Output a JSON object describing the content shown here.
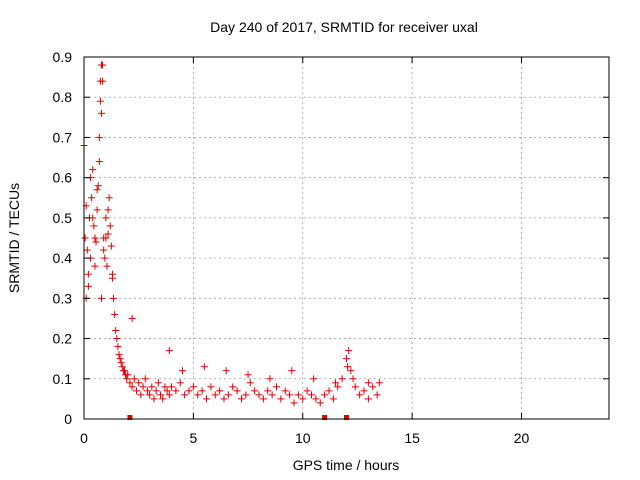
{
  "chart_data": {
    "type": "scatter",
    "title": "Day 240 of 2017, SRMTID for receiver uxal",
    "xlabel": "GPS time / hours",
    "ylabel": "SRMTID / TECUs",
    "xlim": [
      0,
      24
    ],
    "ylim": [
      0,
      0.9
    ],
    "xticks": [
      "0",
      "5",
      "10",
      "15",
      "20"
    ],
    "xtick_values": [
      0,
      5,
      10,
      15,
      20
    ],
    "yticks": [
      "0",
      "0.1",
      "0.2",
      "0.3",
      "0.4",
      "0.5",
      "0.6",
      "0.7",
      "0.8",
      "0.9"
    ],
    "ytick_values": [
      0,
      0.1,
      0.2,
      0.3,
      0.4,
      0.5,
      0.6,
      0.7,
      0.8,
      0.9
    ],
    "grid": true,
    "color": "#e00000",
    "series": [
      {
        "name": "SRMTID",
        "marker": "plus",
        "x": [
          0.0,
          0.05,
          0.1,
          0.15,
          0.2,
          0.25,
          0.3,
          0.35,
          0.4,
          0.45,
          0.5,
          0.55,
          0.6,
          0.65,
          0.7,
          0.75,
          0.8,
          0.85,
          0.9,
          0.95,
          1.0,
          1.05,
          1.1,
          1.15,
          1.2,
          1.25,
          1.3,
          1.35,
          1.4,
          1.45,
          1.5,
          1.55,
          1.6,
          1.65,
          1.7,
          1.75,
          1.8,
          1.85,
          1.9,
          1.95,
          2.0,
          2.1,
          2.2,
          2.3,
          2.4,
          2.5,
          2.6,
          2.7,
          2.8,
          2.9,
          3.0,
          3.1,
          3.2,
          3.3,
          3.4,
          3.5,
          3.6,
          3.7,
          3.8,
          3.9,
          4.0,
          4.2,
          4.4,
          4.6,
          4.8,
          5.0,
          5.2,
          5.4,
          5.6,
          5.8,
          6.0,
          6.2,
          6.4,
          6.6,
          6.8,
          7.0,
          7.2,
          7.4,
          7.6,
          7.8,
          8.0,
          8.2,
          8.4,
          8.6,
          8.8,
          9.0,
          9.2,
          9.4,
          9.6,
          9.8,
          10.0,
          10.2,
          10.4,
          10.6,
          10.8,
          11.0,
          11.2,
          11.4,
          11.6,
          11.8,
          12.0,
          12.1,
          12.2,
          12.4,
          12.6,
          12.8,
          13.0,
          13.2,
          13.4,
          13.5,
          0.1,
          0.3,
          0.5,
          0.7,
          0.9,
          1.1,
          1.3,
          0.2,
          0.4,
          0.6,
          0.8,
          1.0,
          0.75,
          0.8,
          0.85,
          2.2,
          3.9,
          4.5,
          5.5,
          6.5,
          7.5,
          8.5,
          9.5,
          10.5,
          11.5,
          12.05,
          12.3,
          13.0
        ],
        "y": [
          0.68,
          0.45,
          0.3,
          0.42,
          0.36,
          0.5,
          0.4,
          0.55,
          0.62,
          0.48,
          0.38,
          0.44,
          0.52,
          0.58,
          0.7,
          0.79,
          0.88,
          0.84,
          0.45,
          0.4,
          0.5,
          0.38,
          0.46,
          0.55,
          0.48,
          0.43,
          0.35,
          0.3,
          0.26,
          0.22,
          0.2,
          0.18,
          0.16,
          0.15,
          0.14,
          0.13,
          0.12,
          0.12,
          0.11,
          0.1,
          0.11,
          0.09,
          0.08,
          0.1,
          0.07,
          0.09,
          0.06,
          0.08,
          0.1,
          0.07,
          0.06,
          0.08,
          0.05,
          0.07,
          0.09,
          0.06,
          0.05,
          0.08,
          0.07,
          0.06,
          0.08,
          0.07,
          0.09,
          0.06,
          0.07,
          0.08,
          0.06,
          0.07,
          0.05,
          0.08,
          0.06,
          0.07,
          0.05,
          0.06,
          0.08,
          0.07,
          0.05,
          0.06,
          0.09,
          0.07,
          0.06,
          0.05,
          0.07,
          0.06,
          0.08,
          0.05,
          0.07,
          0.06,
          0.04,
          0.06,
          0.05,
          0.07,
          0.06,
          0.05,
          0.04,
          0.06,
          0.07,
          0.05,
          0.08,
          0.1,
          0.15,
          0.17,
          0.12,
          0.08,
          0.06,
          0.07,
          0.05,
          0.08,
          0.06,
          0.09,
          0.53,
          0.6,
          0.45,
          0.64,
          0.42,
          0.52,
          0.36,
          0.33,
          0.5,
          0.57,
          0.3,
          0.45,
          0.84,
          0.76,
          0.88,
          0.25,
          0.17,
          0.12,
          0.13,
          0.12,
          0.11,
          0.1,
          0.12,
          0.1,
          0.09,
          0.13,
          0.1,
          0.09
        ]
      }
    ],
    "baseline_markers_x": [
      2.1,
      11.0,
      12.0
    ]
  }
}
